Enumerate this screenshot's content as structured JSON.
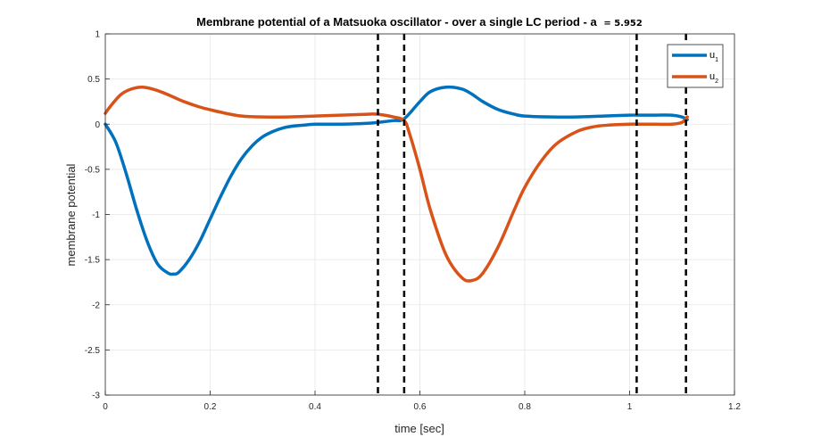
{
  "chart_data": {
    "type": "line",
    "title_main": "Membrane potential of a Matsuoka oscillator - over a single LC period - a",
    "title_eq": "= 5.952",
    "xlabel": "time [sec]",
    "ylabel": "membrane potential",
    "xlim": [
      0,
      1.2
    ],
    "ylim": [
      -3,
      1
    ],
    "xticks": [
      "0",
      "0.2",
      "0.4",
      "0.6",
      "0.8",
      "1",
      "1.2"
    ],
    "yticks": [
      "1",
      "0.5",
      "0",
      "-0.5",
      "-1",
      "-1.5",
      "-2",
      "-2.5",
      "-3"
    ],
    "grid": true,
    "legend_position": "top-right",
    "series": [
      {
        "name": "u",
        "subscript": "1",
        "color": "#0072BD",
        "x": [
          0,
          0.02,
          0.04,
          0.06,
          0.08,
          0.1,
          0.12,
          0.13,
          0.14,
          0.16,
          0.18,
          0.2,
          0.22,
          0.24,
          0.26,
          0.28,
          0.3,
          0.32,
          0.34,
          0.36,
          0.38,
          0.4,
          0.45,
          0.5,
          0.52,
          0.55,
          0.57,
          0.6,
          0.62,
          0.65,
          0.68,
          0.7,
          0.72,
          0.75,
          0.78,
          0.8,
          0.85,
          0.9,
          0.95,
          1.0,
          1.02,
          1.05,
          1.08,
          1.1,
          1.11
        ],
        "y": [
          0,
          -0.2,
          -0.55,
          -0.95,
          -1.3,
          -1.55,
          -1.65,
          -1.66,
          -1.64,
          -1.5,
          -1.3,
          -1.05,
          -0.8,
          -0.57,
          -0.38,
          -0.24,
          -0.14,
          -0.08,
          -0.04,
          -0.02,
          -0.01,
          0.0,
          0.0,
          0.01,
          0.02,
          0.04,
          0.06,
          0.25,
          0.36,
          0.41,
          0.39,
          0.33,
          0.25,
          0.16,
          0.11,
          0.09,
          0.08,
          0.08,
          0.09,
          0.1,
          0.1,
          0.1,
          0.1,
          0.08,
          0.05
        ]
      },
      {
        "name": "u",
        "subscript": "2",
        "color": "#D95319",
        "x": [
          0,
          0.01,
          0.03,
          0.05,
          0.07,
          0.09,
          0.11,
          0.13,
          0.15,
          0.18,
          0.2,
          0.23,
          0.26,
          0.3,
          0.35,
          0.4,
          0.45,
          0.5,
          0.52,
          0.55,
          0.57,
          0.58,
          0.6,
          0.62,
          0.65,
          0.68,
          0.7,
          0.72,
          0.75,
          0.78,
          0.8,
          0.83,
          0.86,
          0.9,
          0.93,
          0.96,
          1.0,
          1.02,
          1.05,
          1.08,
          1.1,
          1.11
        ],
        "y": [
          0.12,
          0.2,
          0.33,
          0.39,
          0.41,
          0.39,
          0.35,
          0.3,
          0.25,
          0.19,
          0.16,
          0.12,
          0.09,
          0.08,
          0.08,
          0.09,
          0.1,
          0.11,
          0.11,
          0.08,
          0.04,
          -0.1,
          -0.5,
          -0.95,
          -1.45,
          -1.7,
          -1.73,
          -1.65,
          -1.35,
          -0.95,
          -0.7,
          -0.42,
          -0.22,
          -0.08,
          -0.03,
          -0.01,
          0.0,
          0.0,
          0.0,
          0.0,
          0.02,
          0.08
        ]
      }
    ],
    "vlines": [
      0.52,
      0.57,
      1.0135,
      1.1075
    ]
  }
}
